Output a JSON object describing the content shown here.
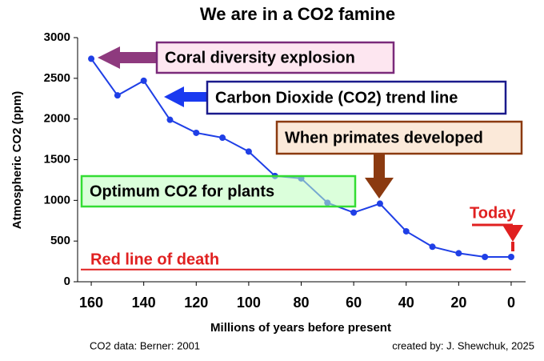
{
  "chart_data": {
    "type": "line",
    "title": "We are in a CO2 famine",
    "x_label": "Millions of years before present",
    "y_label": "Atmospheric CO2 (ppm)",
    "x": [
      160,
      150,
      140,
      130,
      120,
      110,
      100,
      90,
      80,
      70,
      60,
      50,
      40,
      30,
      20,
      10,
      0
    ],
    "series": [
      {
        "name": "CO2",
        "color": "#1f3fe6",
        "values": [
          2740,
          2290,
          2470,
          1990,
          1830,
          1770,
          1600,
          1300,
          1270,
          970,
          850,
          960,
          620,
          430,
          350,
          305,
          305
        ]
      }
    ],
    "xlim": [
      165.2,
      -5.5
    ],
    "ylim": [
      0,
      3000
    ],
    "xticks": [
      160,
      140,
      120,
      100,
      80,
      60,
      40,
      20,
      0
    ],
    "yticks": [
      0,
      500,
      1000,
      1500,
      2000,
      2500,
      3000
    ],
    "red_line": {
      "label": "Red line of death",
      "value": 150,
      "color": "#e02020"
    },
    "annotations": [
      "Coral diversity explosion",
      "Carbon Dioxide (CO2) trend line",
      "When primates developed",
      "Optimum CO2 for plants",
      "Today"
    ],
    "source": "CO2 data: Berner: 2001",
    "credit": "created by: J. Shewchuk, 2025"
  }
}
